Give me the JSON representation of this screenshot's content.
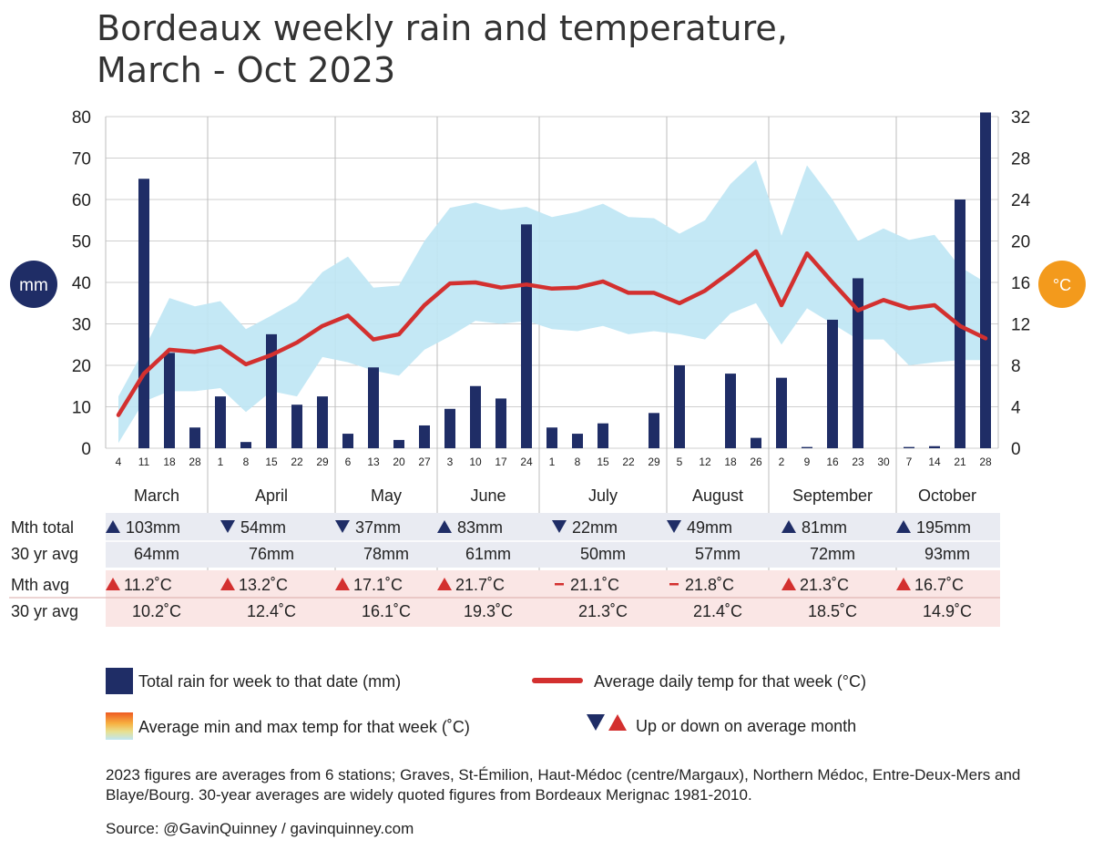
{
  "title_line1": "Bordeaux weekly rain and temperature,",
  "title_line2": "March - Oct 2023",
  "colors": {
    "bar": "#1f2d66",
    "line": "#d3302f",
    "mm_badge": "#1f2d66",
    "c_badge": "#f39a1c",
    "rain_table_bg": "#e9ebf2",
    "temp_table_bg": "#fae6e5",
    "up_triangle_rain": "#1f2d66",
    "up_triangle_temp": "#d3302f"
  },
  "badges": {
    "left": "mm",
    "right": "°C"
  },
  "chart_data": {
    "type": "bar+line+area",
    "left_axis": {
      "unit": "mm",
      "ylim": [
        0,
        80
      ],
      "ticks": [
        "0",
        "10",
        "20",
        "30",
        "40",
        "50",
        "60",
        "70",
        "80"
      ]
    },
    "right_axis": {
      "unit": "°C",
      "ylim": [
        0,
        32
      ],
      "ticks": [
        "0",
        "4",
        "8",
        "12",
        "16",
        "20",
        "24",
        "28",
        "32"
      ]
    },
    "week_labels": [
      "4",
      "11",
      "18",
      "28",
      "1",
      "8",
      "15",
      "22",
      "29",
      "6",
      "13",
      "20",
      "27",
      "3",
      "10",
      "17",
      "24",
      "1",
      "8",
      "15",
      "22",
      "29",
      "5",
      "12",
      "18",
      "26",
      "2",
      "9",
      "16",
      "23",
      "30",
      "7",
      "14",
      "21",
      "28"
    ],
    "month_breaks_after_index": [
      3,
      8,
      12,
      16,
      21,
      25,
      30
    ],
    "series": [
      {
        "name": "Total rain for week to that date (mm)",
        "kind": "bar",
        "axis": "left",
        "values": [
          0,
          65,
          23,
          5,
          12.5,
          1.5,
          27.5,
          10.5,
          12.5,
          3.5,
          19.5,
          2,
          5.5,
          9.5,
          15,
          12,
          54,
          5,
          3.5,
          6,
          0,
          8.5,
          20,
          0,
          18,
          2.5,
          17,
          0.3,
          31,
          41,
          0,
          0.3,
          0.5,
          60,
          81
        ]
      },
      {
        "name": "Average daily temp for that week (°C)",
        "kind": "line",
        "axis": "right",
        "values": [
          3.2,
          7.2,
          9.5,
          9.3,
          9.8,
          8.1,
          9,
          10.2,
          11.8,
          12.8,
          10.5,
          11,
          13.8,
          15.9,
          16,
          15.5,
          15.8,
          15.4,
          15.5,
          16.1,
          15,
          15,
          14,
          15.2,
          17,
          19,
          13.8,
          18.8,
          16,
          13.3,
          14.3,
          13.5,
          13.8,
          11.8,
          10.6
        ]
      },
      {
        "name": "Average min and max temp for that week (°C)",
        "kind": "band",
        "axis": "right",
        "min": [
          0.5,
          4.5,
          5.5,
          5.5,
          5.8,
          3.5,
          5.5,
          5,
          8.8,
          8.3,
          7.5,
          7,
          9.5,
          10.8,
          12.3,
          12,
          12.3,
          11.5,
          11.3,
          11.8,
          11,
          11.3,
          11,
          10.5,
          13,
          14,
          10,
          13.5,
          12,
          10.5,
          10.5,
          8,
          8.3,
          8.5,
          8.5
        ],
        "max": [
          5,
          9.5,
          14.5,
          13.7,
          14.2,
          11.5,
          12.8,
          14.2,
          17,
          18.5,
          15.5,
          15.7,
          20,
          23.2,
          23.7,
          23,
          23.3,
          22.3,
          22.8,
          23.6,
          22.3,
          22.2,
          20.7,
          22,
          25.5,
          27.8,
          20.5,
          27.3,
          24,
          20,
          21.2,
          20.1,
          20.6,
          17.5,
          16
        ]
      }
    ]
  },
  "months": [
    "March",
    "April",
    "May",
    "June",
    "July",
    "August",
    "September",
    "October"
  ],
  "table": {
    "row_labels": [
      "Mth total",
      "30 yr avg",
      "Mth avg",
      "30 yr avg"
    ],
    "mth_total": [
      {
        "dir": "up",
        "text": "103mm"
      },
      {
        "dir": "down",
        "text": "54mm"
      },
      {
        "dir": "down",
        "text": "37mm"
      },
      {
        "dir": "up",
        "text": "83mm"
      },
      {
        "dir": "down",
        "text": "22mm"
      },
      {
        "dir": "down",
        "text": "49mm"
      },
      {
        "dir": "up",
        "text": "81mm"
      },
      {
        "dir": "up",
        "text": "195mm"
      }
    ],
    "rain_30yr": [
      "64mm",
      "76mm",
      "78mm",
      "61mm",
      "50mm",
      "57mm",
      "72mm",
      "93mm"
    ],
    "mth_avg": [
      {
        "dir": "up",
        "text": "11.2˚C"
      },
      {
        "dir": "up",
        "text": "13.2˚C"
      },
      {
        "dir": "up",
        "text": "17.1˚C"
      },
      {
        "dir": "up",
        "text": "21.7˚C"
      },
      {
        "dir": "same",
        "text": "21.1˚C"
      },
      {
        "dir": "same",
        "text": "21.8˚C"
      },
      {
        "dir": "up",
        "text": "21.3˚C"
      },
      {
        "dir": "up",
        "text": "16.7˚C"
      }
    ],
    "temp_30yr": [
      "10.2˚C",
      "12.4˚C",
      "16.1˚C",
      "19.3˚C",
      "21.3˚C",
      "21.4˚C",
      "18.5˚C",
      "14.9˚C"
    ]
  },
  "legend": {
    "bar": "Total rain for week to that date (mm)",
    "line": "Average daily temp for that week (°C)",
    "band": "Average min and max temp for that week (˚C)",
    "arrows": "Up or down on average month"
  },
  "notes": "2023 figures are averages from 6 stations; Graves, St-Émilion, Haut-Médoc (centre/Margaux), Northern Médoc, Entre-Deux-Mers and Blaye/Bourg. 30-year averages are widely quoted figures from Bordeaux Merignac 1981-2010.",
  "source": "Source: @GavinQuinney / gavinquinney.com"
}
